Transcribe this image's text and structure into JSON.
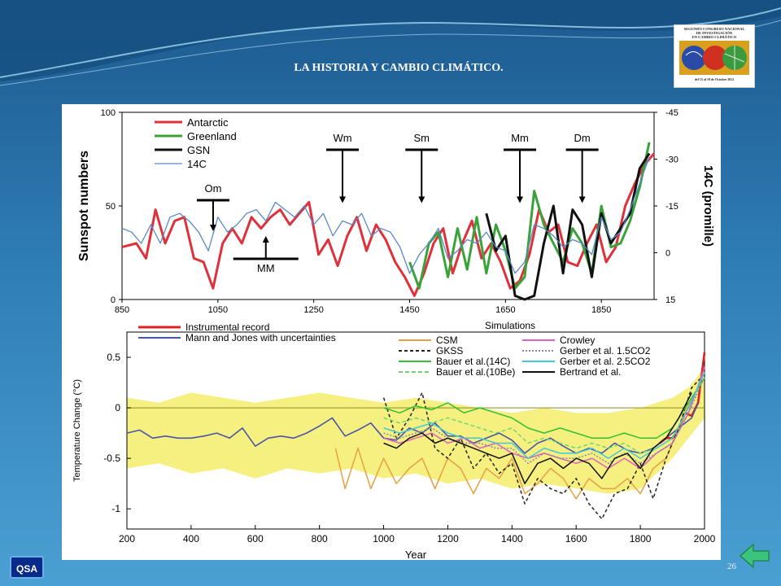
{
  "slide": {
    "title": "LA HISTORIA Y CAMBIO CLIMÁTICO.",
    "logo_text": [
      "SEGUNDO CONGRESO NACIONAL",
      "DE INVESTIGACIÓN",
      "EN CAMBIO CLIMÁTICO"
    ],
    "logo_date": "del 15 al 19 de Octubre 2012",
    "footer_badge": "QSA",
    "page_number": "26",
    "colors": {
      "accent": "#2f7db5",
      "back_button": "#3cc47c"
    }
  },
  "chart_data": [
    {
      "type": "line",
      "ylabel": "Sunspot numbers",
      "ylabel_right": "14C (promille)",
      "xlim": [
        850,
        1960
      ],
      "ylim": [
        0,
        100
      ],
      "y2_ticks": [
        "-45",
        "-30",
        "-15",
        "0",
        "15"
      ],
      "xticks": [
        850,
        1050,
        1250,
        1450,
        1650,
        1850
      ],
      "yticks": [
        0,
        50,
        100
      ],
      "legend": [
        "Antarctic",
        "Greenland",
        "GSN",
        "14C"
      ],
      "annotations": [
        {
          "label": "Om",
          "x": 1040,
          "arrow": "down",
          "y": 40
        },
        {
          "label": "MM",
          "x": 1150,
          "arrow": "up",
          "y": 32
        },
        {
          "label": "Wm",
          "x": 1310,
          "arrow": "down",
          "y": 55
        },
        {
          "label": "Sm",
          "x": 1475,
          "arrow": "down",
          "y": 55
        },
        {
          "label": "Mm",
          "x": 1680,
          "arrow": "down",
          "y": 55
        },
        {
          "label": "Dm",
          "x": 1810,
          "arrow": "down",
          "y": 55
        }
      ],
      "series": [
        {
          "name": "Antarctic",
          "color": "#e0303a",
          "x": [
            850,
            880,
            900,
            920,
            940,
            960,
            980,
            1000,
            1020,
            1040,
            1060,
            1080,
            1100,
            1120,
            1140,
            1160,
            1180,
            1200,
            1220,
            1240,
            1260,
            1280,
            1300,
            1320,
            1340,
            1360,
            1380,
            1400,
            1420,
            1440,
            1460,
            1480,
            1500,
            1520,
            1540,
            1560,
            1580,
            1600,
            1620,
            1640,
            1660,
            1680,
            1700,
            1720,
            1740,
            1760,
            1780,
            1800,
            1820,
            1840,
            1860,
            1880,
            1900,
            1920,
            1940,
            1960
          ],
          "y": [
            28,
            30,
            22,
            48,
            30,
            42,
            44,
            22,
            20,
            6,
            30,
            38,
            30,
            44,
            38,
            44,
            48,
            40,
            46,
            52,
            24,
            32,
            18,
            34,
            44,
            26,
            40,
            32,
            20,
            12,
            2,
            14,
            30,
            38,
            14,
            30,
            42,
            22,
            30,
            20,
            6,
            10,
            24,
            48,
            36,
            40,
            20,
            18,
            30,
            40,
            20,
            28,
            50,
            62,
            72,
            78
          ]
        },
        {
          "name": "Greenland",
          "color": "#39a33a",
          "x": [
            1450,
            1470,
            1490,
            1510,
            1530,
            1550,
            1570,
            1590,
            1610,
            1630,
            1650,
            1670,
            1690,
            1710,
            1730,
            1750,
            1770,
            1790,
            1810,
            1830,
            1850,
            1870,
            1890,
            1910,
            1930,
            1950
          ],
          "y": [
            20,
            6,
            30,
            36,
            12,
            38,
            16,
            44,
            14,
            40,
            26,
            6,
            12,
            58,
            40,
            30,
            20,
            38,
            30,
            14,
            50,
            28,
            30,
            42,
            60,
            84
          ]
        },
        {
          "name": "GSN",
          "color": "#111111",
          "x": [
            1610,
            1630,
            1650,
            1670,
            1690,
            1710,
            1730,
            1750,
            1770,
            1790,
            1810,
            1830,
            1850,
            1870,
            1890,
            1910,
            1930,
            1950
          ],
          "y": [
            46,
            26,
            34,
            2,
            0,
            2,
            30,
            50,
            14,
            48,
            40,
            12,
            46,
            30,
            38,
            46,
            70,
            78
          ]
        },
        {
          "name": "14C",
          "color": "#5a88c8",
          "x": [
            850,
            870,
            890,
            910,
            930,
            950,
            970,
            990,
            1010,
            1030,
            1050,
            1070,
            1090,
            1110,
            1130,
            1150,
            1170,
            1190,
            1210,
            1230,
            1250,
            1270,
            1290,
            1310,
            1330,
            1350,
            1370,
            1390,
            1410,
            1430,
            1450,
            1470,
            1490,
            1510,
            1530,
            1550,
            1570,
            1590,
            1610,
            1630,
            1650,
            1670,
            1690,
            1710,
            1730,
            1750,
            1770,
            1790,
            1810,
            1830,
            1850,
            1870,
            1890,
            1910,
            1930,
            1950
          ],
          "y": [
            38,
            36,
            30,
            40,
            30,
            44,
            46,
            42,
            36,
            26,
            44,
            36,
            40,
            46,
            48,
            42,
            52,
            48,
            44,
            50,
            40,
            46,
            34,
            42,
            40,
            46,
            34,
            38,
            36,
            28,
            14,
            24,
            30,
            38,
            22,
            26,
            32,
            30,
            36,
            28,
            26,
            14,
            20,
            40,
            38,
            34,
            28,
            32,
            30,
            24,
            44,
            32,
            36,
            48,
            62,
            76
          ]
        }
      ]
    },
    {
      "type": "line",
      "xlabel": "Year",
      "ylabel": "Temperature Change (°C)",
      "xlim": [
        200,
        2000
      ],
      "ylim": [
        -1.2,
        0.75
      ],
      "xticks": [
        200,
        400,
        600,
        800,
        1000,
        1200,
        1400,
        1600,
        1800,
        2000
      ],
      "yticks": [
        -1,
        -0.5,
        0,
        0.5
      ],
      "ytick_labels": [
        "-1",
        "-0.5",
        "0",
        "0.5"
      ],
      "legend_left": [
        "Instrumental record",
        "Mann and Jones with uncertainties"
      ],
      "legend_heading": "Simulations",
      "legend_sim": [
        "CSM",
        "GKSS",
        "Bauer et al.(14C)",
        "Bauer et al.(10Be)",
        "Crowley",
        "Gerber et al. 1.5CO2",
        "Gerber et al. 2.5CO2",
        "Bertrand et al."
      ],
      "series": [
        {
          "name": "Instrumental record",
          "color": "#e02020",
          "x": [
            1860,
            1880,
            1900,
            1920,
            1940,
            1960,
            1980,
            2000
          ],
          "y": [
            -0.35,
            -0.3,
            -0.3,
            -0.2,
            -0.05,
            -0.08,
            0.05,
            0.55
          ]
        },
        {
          "name": "Mann and Jones with uncertainties",
          "color": "#4a55a8",
          "x": [
            200,
            240,
            280,
            320,
            360,
            400,
            440,
            480,
            520,
            560,
            600,
            640,
            680,
            720,
            760,
            800,
            840,
            880,
            920,
            960,
            1000,
            1040,
            1080,
            1120,
            1160,
            1200,
            1240,
            1280,
            1320,
            1360,
            1400,
            1440,
            1480,
            1520,
            1560,
            1600,
            1640,
            1680,
            1720,
            1760,
            1800,
            1840,
            1880,
            1920,
            1960,
            1980
          ],
          "y": [
            -0.25,
            -0.22,
            -0.3,
            -0.28,
            -0.3,
            -0.3,
            -0.28,
            -0.25,
            -0.3,
            -0.2,
            -0.38,
            -0.3,
            -0.28,
            -0.3,
            -0.25,
            -0.18,
            -0.1,
            -0.28,
            -0.22,
            -0.15,
            -0.3,
            -0.32,
            -0.2,
            -0.25,
            -0.15,
            -0.28,
            -0.28,
            -0.35,
            -0.3,
            -0.25,
            -0.32,
            -0.45,
            -0.35,
            -0.3,
            -0.38,
            -0.45,
            -0.4,
            -0.45,
            -0.35,
            -0.42,
            -0.45,
            -0.4,
            -0.3,
            -0.2,
            -0.1,
            0.05
          ]
        },
        {
          "name": "CSM",
          "color": "#e8a040",
          "x": [
            850,
            880,
            920,
            960,
            1000,
            1040,
            1080,
            1120,
            1160,
            1200,
            1240,
            1280,
            1320,
            1360,
            1400,
            1440,
            1480,
            1520,
            1560,
            1600,
            1640,
            1680,
            1720,
            1760,
            1800,
            1840,
            1880,
            1920,
            1960
          ],
          "y": [
            -0.4,
            -0.8,
            -0.4,
            -0.8,
            -0.5,
            -0.75,
            -0.6,
            -0.5,
            -0.8,
            -0.5,
            -0.6,
            -0.85,
            -0.6,
            -0.7,
            -0.5,
            -0.85,
            -0.75,
            -0.6,
            -0.7,
            -0.9,
            -0.7,
            -0.8,
            -0.8,
            -0.7,
            -0.85,
            -0.6,
            -0.5,
            -0.2,
            0.1
          ]
        },
        {
          "name": "GKSS",
          "color": "#222222",
          "x": [
            1000,
            1040,
            1080,
            1120,
            1160,
            1200,
            1240,
            1280,
            1320,
            1360,
            1400,
            1440,
            1480,
            1520,
            1560,
            1600,
            1640,
            1680,
            1720,
            1760,
            1800,
            1840,
            1880,
            1920,
            1960,
            1990
          ],
          "y": [
            0.1,
            -0.3,
            -0.1,
            0.15,
            -0.4,
            -0.5,
            -0.3,
            -0.6,
            -0.45,
            -0.65,
            -0.55,
            -0.95,
            -0.7,
            -0.8,
            -0.85,
            -0.7,
            -0.95,
            -1.1,
            -0.85,
            -0.8,
            -0.55,
            -0.9,
            -0.5,
            -0.2,
            0.2,
            0.3
          ]
        },
        {
          "name": "Bauer et al.(14C)",
          "color": "#30c030",
          "x": [
            1000,
            1050,
            1100,
            1150,
            1200,
            1250,
            1300,
            1350,
            1400,
            1450,
            1500,
            1550,
            1600,
            1650,
            1700,
            1750,
            1800,
            1850,
            1900,
            1950,
            2000
          ],
          "y": [
            0,
            -0.05,
            0.02,
            -0.02,
            0.05,
            -0.05,
            0,
            -0.05,
            -0.1,
            -0.2,
            -0.25,
            -0.2,
            -0.25,
            -0.3,
            -0.3,
            -0.25,
            -0.3,
            -0.3,
            -0.2,
            0.05,
            0.3
          ]
        },
        {
          "name": "Bauer et al.(10Be)",
          "color": "#70d870",
          "x": [
            1000,
            1050,
            1100,
            1150,
            1200,
            1250,
            1300,
            1350,
            1400,
            1450,
            1500,
            1550,
            1600,
            1650,
            1700,
            1750,
            1800,
            1850,
            1900,
            1950,
            2000
          ],
          "y": [
            -0.1,
            -0.15,
            -0.1,
            -0.15,
            -0.1,
            -0.15,
            -0.2,
            -0.25,
            -0.2,
            -0.35,
            -0.3,
            -0.35,
            -0.4,
            -0.35,
            -0.4,
            -0.35,
            -0.45,
            -0.4,
            -0.3,
            0,
            0.3
          ]
        },
        {
          "name": "Crowley",
          "color": "#e060c0",
          "x": [
            1000,
            1050,
            1100,
            1150,
            1200,
            1250,
            1300,
            1350,
            1400,
            1450,
            1500,
            1550,
            1600,
            1650,
            1700,
            1750,
            1800,
            1850,
            1900,
            1950,
            2000
          ],
          "y": [
            -0.3,
            -0.35,
            -0.3,
            -0.25,
            -0.35,
            -0.3,
            -0.4,
            -0.35,
            -0.45,
            -0.5,
            -0.45,
            -0.5,
            -0.55,
            -0.5,
            -0.6,
            -0.5,
            -0.6,
            -0.45,
            -0.35,
            -0.05,
            0.4
          ]
        },
        {
          "name": "Gerber et al. 1.5CO2",
          "color": "#8888aa",
          "x": [
            1000,
            1050,
            1100,
            1150,
            1200,
            1250,
            1300,
            1350,
            1400,
            1450,
            1500,
            1550,
            1600,
            1650,
            1700,
            1750,
            1800,
            1850,
            1900,
            1950,
            2000
          ],
          "y": [
            -0.25,
            -0.3,
            -0.25,
            -0.2,
            -0.3,
            -0.35,
            -0.35,
            -0.4,
            -0.4,
            -0.55,
            -0.45,
            -0.5,
            -0.5,
            -0.45,
            -0.55,
            -0.45,
            -0.55,
            -0.45,
            -0.35,
            -0.05,
            0.3
          ]
        },
        {
          "name": "Gerber et al. 2.5CO2",
          "color": "#40c8d8",
          "x": [
            1000,
            1050,
            1100,
            1150,
            1200,
            1250,
            1300,
            1350,
            1400,
            1450,
            1500,
            1550,
            1600,
            1650,
            1700,
            1750,
            1800,
            1850,
            1900,
            1950,
            2000
          ],
          "y": [
            -0.2,
            -0.25,
            -0.2,
            -0.15,
            -0.25,
            -0.3,
            -0.3,
            -0.35,
            -0.35,
            -0.5,
            -0.4,
            -0.45,
            -0.45,
            -0.4,
            -0.5,
            -0.4,
            -0.5,
            -0.4,
            -0.3,
            0,
            0.35
          ]
        },
        {
          "name": "Bertrand et al.",
          "color": "#111111",
          "x": [
            1000,
            1040,
            1080,
            1120,
            1160,
            1200,
            1240,
            1280,
            1320,
            1360,
            1400,
            1440,
            1480,
            1520,
            1560,
            1600,
            1640,
            1680,
            1720,
            1760,
            1800,
            1840,
            1880,
            1920,
            1960
          ],
          "y": [
            -0.35,
            -0.4,
            -0.3,
            -0.25,
            -0.35,
            -0.3,
            -0.35,
            -0.4,
            -0.45,
            -0.5,
            -0.45,
            -0.75,
            -0.55,
            -0.5,
            -0.6,
            -0.5,
            -0.55,
            -0.7,
            -0.5,
            -0.45,
            -0.6,
            -0.4,
            -0.3,
            -0.1,
            0.15
          ]
        }
      ],
      "band": {
        "color": "#f6f080",
        "x": [
          200,
          300,
          400,
          500,
          600,
          700,
          800,
          900,
          1000,
          1100,
          1200,
          1300,
          1400,
          1500,
          1600,
          1700,
          1800,
          1900,
          1950,
          2000
        ],
        "lower": [
          -0.6,
          -0.55,
          -0.65,
          -0.6,
          -0.7,
          -0.6,
          -0.65,
          -0.6,
          -0.7,
          -0.65,
          -0.75,
          -0.7,
          -0.8,
          -0.75,
          -0.8,
          -0.85,
          -0.8,
          -0.5,
          -0.3,
          -0.1
        ],
        "upper": [
          0.1,
          0.05,
          0.15,
          0.1,
          0.05,
          0.1,
          0.15,
          0.1,
          0.05,
          0.1,
          0.05,
          0,
          -0.05,
          0,
          -0.05,
          -0.05,
          0,
          0.1,
          0.2,
          0.4
        ]
      }
    }
  ]
}
